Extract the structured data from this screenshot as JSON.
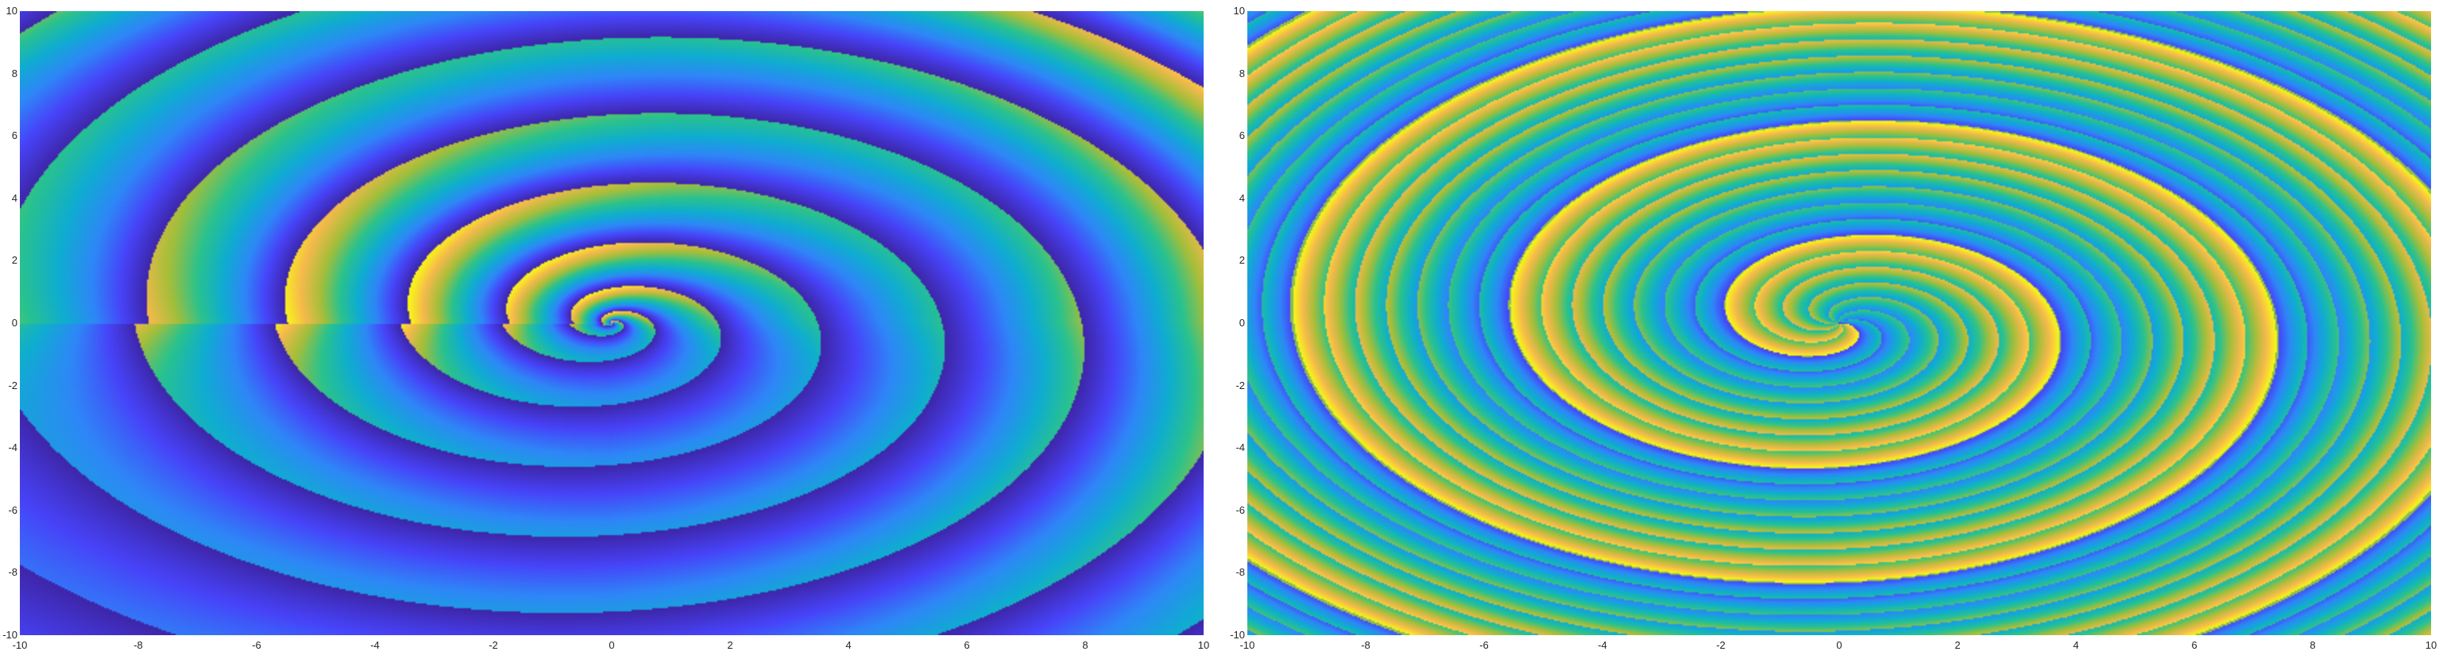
{
  "chart_data": [
    {
      "type": "heatmap",
      "title": "",
      "xlabel": "",
      "ylabel": "",
      "xlim": [
        -10,
        10
      ],
      "ylim": [
        -10,
        10
      ],
      "x_ticks": [
        "-10",
        "-8",
        "-6",
        "-4",
        "-2",
        "0",
        "2",
        "4",
        "6",
        "8",
        "10"
      ],
      "y_ticks": [
        "10",
        "8",
        "6",
        "4",
        "2",
        "0",
        "-2",
        "-4",
        "-6",
        "-8",
        "-10"
      ],
      "x_tick_values": [
        -10,
        -8,
        -6,
        -4,
        -2,
        0,
        2,
        4,
        6,
        8,
        10
      ],
      "y_tick_values": [
        10,
        8,
        6,
        4,
        2,
        0,
        -2,
        -4,
        -6,
        -8,
        -10
      ],
      "colormap": "parula",
      "grid": false,
      "branch_cut": [
        -10,
        0
      ]
    },
    {
      "type": "heatmap",
      "title": "",
      "xlabel": "",
      "ylabel": "",
      "xlim": [
        -10,
        10
      ],
      "ylim": [
        -10,
        10
      ],
      "x_ticks": [
        "-10",
        "-8",
        "-6",
        "-4",
        "-2",
        "0",
        "2",
        "4",
        "6",
        "8",
        "10"
      ],
      "y_ticks": [
        "10",
        "8",
        "6",
        "4",
        "2",
        "0",
        "-2",
        "-4",
        "-6",
        "-8",
        "-10"
      ],
      "x_tick_values": [
        -10,
        -8,
        -6,
        -4,
        -2,
        0,
        2,
        4,
        6,
        8,
        10
      ],
      "y_tick_values": [
        10,
        8,
        6,
        4,
        2,
        0,
        -2,
        -4,
        -6,
        -8,
        -10
      ],
      "colormap": "parula",
      "grid": false
    }
  ],
  "colors": {
    "colormap_stops": [
      "#3e26a8",
      "#4743f8",
      "#2e87f7",
      "#0fadd0",
      "#2ac28d",
      "#a5be3a",
      "#f5b94c",
      "#f9fb14"
    ]
  }
}
